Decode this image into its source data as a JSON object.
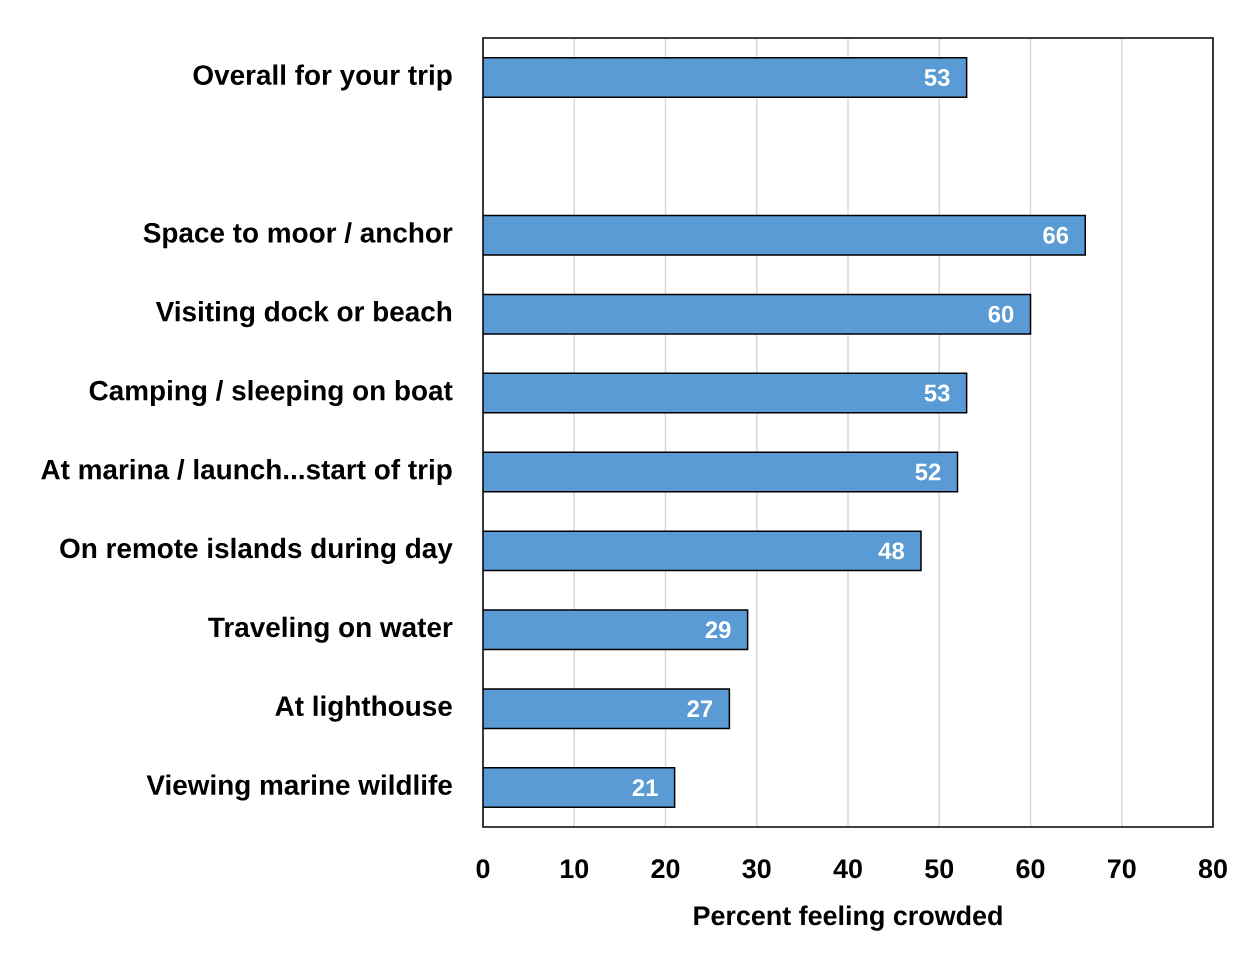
{
  "chart_data": {
    "type": "bar",
    "orientation": "horizontal",
    "categories": [
      "Overall for your trip",
      null,
      "Space to moor / anchor",
      "Visiting dock or beach",
      "Camping / sleeping on boat",
      "At marina / launch...start of trip",
      "On remote islands during day",
      "Traveling on water",
      "At lighthouse",
      "Viewing marine wildlife"
    ],
    "values": [
      53,
      null,
      66,
      60,
      53,
      52,
      48,
      29,
      27,
      21
    ],
    "color": "#5b9bd5",
    "xlabel": "Percent feeling crowded",
    "xlim": [
      0,
      80
    ],
    "xticks": [
      0,
      10,
      20,
      30,
      40,
      50,
      60,
      70,
      80
    ],
    "grid": "x",
    "data_labels": true
  }
}
